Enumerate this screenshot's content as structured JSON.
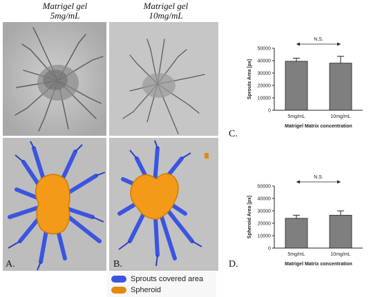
{
  "columns": [
    {
      "line1": "Matrigel gel",
      "line2": "5mg/mL"
    },
    {
      "line1": "Matrigel gel",
      "line2": "10mg/mL"
    }
  ],
  "panel_letters": {
    "a": "A.",
    "b": "B.",
    "c": "C.",
    "d": "D."
  },
  "legend": [
    {
      "label": "Sprouts covered area",
      "color": "#3b55e0"
    },
    {
      "label": "Spheroid",
      "color": "#e08a10"
    }
  ],
  "colors": {
    "bar": "#7f7f7f",
    "sprout_mask": "#3b55e0",
    "spheroid_mask": "#f39a18",
    "micrograph_bg": "#b8b8b8"
  },
  "chart_data": [
    {
      "type": "bar",
      "categories": [
        "5mg/mL",
        "10mg/mL"
      ],
      "values": [
        39500,
        38000
      ],
      "errors": [
        2500,
        5500
      ],
      "ylabel": "Sprouts Area [px]",
      "xlabel": "Matrigel Matrix concentration",
      "ylim": [
        0,
        50000
      ],
      "yticks": [
        "0",
        "10000",
        "20000",
        "30000",
        "40000",
        "50000"
      ],
      "annotation": "N.S."
    },
    {
      "type": "bar",
      "categories": [
        "5mg/mL",
        "10mg/mL"
      ],
      "values": [
        24000,
        26500
      ],
      "errors": [
        2500,
        3500
      ],
      "ylabel": "Spheroid Area [px]",
      "xlabel": "Matrigel Matrix concentration",
      "ylim": [
        0,
        50000
      ],
      "yticks": [
        "0",
        "10000",
        "20000",
        "30000",
        "40000",
        "50000"
      ],
      "annotation": "N.S."
    }
  ]
}
